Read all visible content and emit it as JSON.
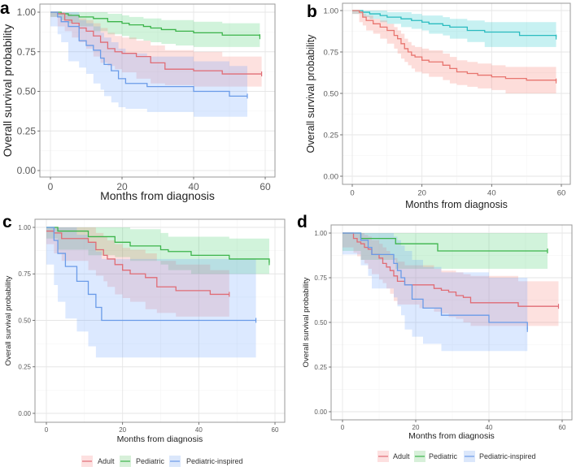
{
  "chart_data": [
    {
      "panel": "a",
      "type": "line",
      "subtype": "kaplan-meier step with confidence bands",
      "xlabel": "Months from diagnosis",
      "ylabel": "Overall survival probability",
      "xlim": [
        0,
        60
      ],
      "ylim": [
        0,
        1
      ],
      "xticks": [
        "0",
        "20",
        "40",
        "60"
      ],
      "yticks": [
        "0.00",
        "0.25",
        "0.50",
        "0.75",
        "1.00"
      ],
      "grid": true,
      "legend": "none",
      "series": [
        {
          "name": "Pediatric",
          "color": "#3cb44b",
          "x": [
            0,
            3,
            5,
            8,
            12,
            16,
            20,
            22,
            26,
            28,
            31,
            35,
            40,
            48,
            58.5
          ],
          "y": [
            1,
            0.99,
            0.98,
            0.97,
            0.96,
            0.94,
            0.93,
            0.92,
            0.91,
            0.9,
            0.89,
            0.88,
            0.87,
            0.855,
            0.845
          ],
          "lower": [
            1,
            0.97,
            0.95,
            0.93,
            0.91,
            0.88,
            0.86,
            0.85,
            0.83,
            0.82,
            0.81,
            0.8,
            0.79,
            0.78,
            0.78
          ],
          "upper": [
            1,
            1,
            1,
            1,
            1,
            0.99,
            0.98,
            0.97,
            0.96,
            0.96,
            0.95,
            0.95,
            0.94,
            0.93,
            0.93
          ]
        },
        {
          "name": "Adult",
          "color": "#e06c75",
          "x": [
            0,
            2,
            4,
            6,
            8,
            10,
            12,
            14,
            16,
            18,
            20,
            24,
            28,
            32,
            40,
            48,
            59
          ],
          "y": [
            1,
            0.99,
            0.95,
            0.93,
            0.9,
            0.88,
            0.85,
            0.81,
            0.77,
            0.75,
            0.74,
            0.72,
            0.68,
            0.64,
            0.63,
            0.61,
            0.61
          ],
          "lower": [
            1,
            0.97,
            0.91,
            0.88,
            0.84,
            0.81,
            0.77,
            0.72,
            0.68,
            0.66,
            0.64,
            0.62,
            0.58,
            0.55,
            0.54,
            0.53,
            0.53
          ],
          "upper": [
            1,
            1,
            0.99,
            0.98,
            0.96,
            0.95,
            0.93,
            0.9,
            0.87,
            0.85,
            0.84,
            0.82,
            0.79,
            0.76,
            0.75,
            0.72,
            0.71
          ]
        },
        {
          "name": "Pediatric-inspired",
          "color": "#6a9be8",
          "x": [
            0,
            2,
            3,
            5,
            8,
            10,
            12,
            14,
            15,
            17,
            19,
            21,
            27,
            40,
            50,
            55
          ],
          "y": [
            1,
            0.97,
            0.94,
            0.91,
            0.82,
            0.79,
            0.76,
            0.71,
            0.67,
            0.63,
            0.58,
            0.55,
            0.53,
            0.5,
            0.47,
            0.47
          ],
          "lower": [
            1,
            0.91,
            0.86,
            0.81,
            0.69,
            0.65,
            0.61,
            0.55,
            0.51,
            0.47,
            0.43,
            0.4,
            0.39,
            0.37,
            0.34,
            0.34
          ],
          "upper": [
            1,
            1,
            1,
            1,
            0.95,
            0.93,
            0.91,
            0.87,
            0.84,
            0.81,
            0.77,
            0.74,
            0.72,
            0.69,
            0.66,
            0.66
          ]
        }
      ]
    },
    {
      "panel": "b",
      "type": "line",
      "subtype": "kaplan-meier step with confidence bands",
      "xlabel": "Months from diagnosis",
      "ylabel": "Overall survival probability",
      "xlim": [
        0,
        60
      ],
      "ylim": [
        0,
        1
      ],
      "xticks": [
        "0",
        "20",
        "40",
        "60"
      ],
      "yticks": [
        "0.00",
        "0.25",
        "0.50",
        "0.75",
        "1.00"
      ],
      "grid": true,
      "legend": "none",
      "series": [
        {
          "name": "Pediatric",
          "color": "#2bbcc0",
          "x": [
            0,
            3,
            5,
            8,
            10,
            14,
            17,
            20,
            22,
            26,
            28,
            33,
            38,
            48,
            58.5
          ],
          "y": [
            1,
            0.99,
            0.98,
            0.97,
            0.96,
            0.95,
            0.94,
            0.93,
            0.92,
            0.91,
            0.9,
            0.88,
            0.87,
            0.85,
            0.84
          ],
          "lower": [
            1,
            0.98,
            0.96,
            0.95,
            0.93,
            0.92,
            0.9,
            0.89,
            0.88,
            0.86,
            0.85,
            0.83,
            0.81,
            0.78,
            0.78
          ],
          "upper": [
            1,
            1,
            1,
            1,
            0.99,
            0.99,
            0.98,
            0.97,
            0.97,
            0.96,
            0.95,
            0.94,
            0.93,
            0.93,
            0.93
          ]
        },
        {
          "name": "Adult",
          "color": "#e8756f",
          "x": [
            0,
            2,
            3,
            4,
            6,
            8,
            10,
            12,
            13,
            14,
            15,
            16,
            17,
            18,
            20,
            22,
            26,
            28,
            30,
            33,
            36,
            40,
            44,
            50,
            58.5
          ],
          "y": [
            1,
            0.99,
            0.96,
            0.94,
            0.92,
            0.9,
            0.88,
            0.85,
            0.83,
            0.8,
            0.77,
            0.75,
            0.73,
            0.72,
            0.7,
            0.69,
            0.67,
            0.65,
            0.63,
            0.62,
            0.61,
            0.6,
            0.59,
            0.58,
            0.575
          ],
          "lower": [
            1,
            0.98,
            0.93,
            0.91,
            0.88,
            0.86,
            0.83,
            0.8,
            0.77,
            0.74,
            0.71,
            0.69,
            0.67,
            0.65,
            0.63,
            0.62,
            0.6,
            0.58,
            0.56,
            0.55,
            0.54,
            0.53,
            0.52,
            0.5,
            0.5
          ],
          "upper": [
            1,
            1,
            0.98,
            0.97,
            0.95,
            0.94,
            0.92,
            0.9,
            0.88,
            0.86,
            0.83,
            0.81,
            0.79,
            0.78,
            0.77,
            0.76,
            0.74,
            0.72,
            0.7,
            0.69,
            0.68,
            0.67,
            0.66,
            0.66,
            0.66
          ]
        }
      ]
    },
    {
      "panel": "c",
      "type": "line",
      "subtype": "kaplan-meier step with confidence bands",
      "xlabel": "Months from diagnosis",
      "ylabel": "Overall survival probability",
      "xlim": [
        0,
        60
      ],
      "ylim": [
        0,
        1
      ],
      "xticks": [
        "0",
        "20",
        "40",
        "60"
      ],
      "yticks": [
        "0.00",
        "0.25",
        "0.50",
        "0.75",
        "1.00"
      ],
      "grid": true,
      "legend": "bottom",
      "series": [
        {
          "name": "Pediatric",
          "color": "#3cb44b",
          "x": [
            0,
            3,
            11,
            18,
            22,
            30,
            32,
            38,
            48,
            58.5
          ],
          "y": [
            1,
            0.98,
            0.95,
            0.92,
            0.9,
            0.88,
            0.87,
            0.85,
            0.83,
            0.81
          ],
          "lower": [
            1,
            0.94,
            0.88,
            0.85,
            0.84,
            0.82,
            0.8,
            0.77,
            0.75,
            0.75
          ],
          "upper": [
            1,
            1,
            1,
            1,
            0.99,
            0.97,
            0.95,
            0.95,
            0.94,
            0.93
          ]
        },
        {
          "name": "Adult",
          "color": "#e06c75",
          "x": [
            0,
            2,
            4,
            11,
            13,
            15,
            16,
            18,
            20,
            22,
            26,
            29,
            34,
            43,
            48
          ],
          "y": [
            0.98,
            0.97,
            0.94,
            0.92,
            0.88,
            0.85,
            0.83,
            0.8,
            0.77,
            0.75,
            0.73,
            0.68,
            0.66,
            0.64,
            0.64
          ],
          "lower": [
            0.95,
            0.91,
            0.86,
            0.82,
            0.77,
            0.74,
            0.71,
            0.68,
            0.64,
            0.62,
            0.6,
            0.56,
            0.54,
            0.52,
            0.52
          ],
          "upper": [
            1,
            1,
            1,
            1,
            0.97,
            0.95,
            0.93,
            0.91,
            0.89,
            0.88,
            0.86,
            0.82,
            0.8,
            0.77,
            0.77
          ]
        },
        {
          "name": "Pediatric-inspired",
          "color": "#6a9be8",
          "x": [
            0,
            2,
            3,
            5,
            8,
            11,
            13,
            14.5,
            55
          ],
          "y": [
            1,
            0.93,
            0.86,
            0.79,
            0.71,
            0.64,
            0.57,
            0.5,
            0.5
          ],
          "lower": [
            1,
            0.8,
            0.69,
            0.6,
            0.51,
            0.44,
            0.36,
            0.3,
            0.3
          ],
          "upper": [
            1,
            1,
            1,
            1,
            0.96,
            0.92,
            0.87,
            0.83,
            0.83
          ]
        }
      ],
      "legend_entries": [
        "Adult",
        "Pediatric",
        "Pediatric-inspired"
      ]
    },
    {
      "panel": "d",
      "type": "line",
      "subtype": "kaplan-meier step with confidence bands",
      "xlabel": "Months from diagnosis",
      "ylabel": "Overall survival probability",
      "xlim": [
        0,
        60
      ],
      "ylim": [
        0,
        1
      ],
      "xticks": [
        "0",
        "20",
        "40",
        "60"
      ],
      "yticks": [
        "0.00",
        "0.25",
        "0.50",
        "0.75",
        "1.00"
      ],
      "grid": true,
      "legend": "bottom",
      "series": [
        {
          "name": "Pediatric",
          "color": "#3cb44b",
          "x": [
            0,
            5,
            14.5,
            26,
            56
          ],
          "y": [
            1,
            0.97,
            0.94,
            0.9,
            0.9
          ],
          "lower": [
            1,
            0.9,
            0.85,
            0.8,
            0.8
          ],
          "upper": [
            1,
            1,
            1,
            1,
            1
          ]
        },
        {
          "name": "Adult",
          "color": "#e06c75",
          "x": [
            0,
            3,
            4,
            5,
            6,
            7,
            8,
            10,
            11,
            12,
            13,
            14,
            15,
            17,
            21,
            25,
            27,
            29,
            31,
            33,
            35,
            48,
            59
          ],
          "y": [
            1,
            0.97,
            0.95,
            0.94,
            0.92,
            0.91,
            0.88,
            0.86,
            0.83,
            0.81,
            0.79,
            0.76,
            0.73,
            0.71,
            0.71,
            0.69,
            0.68,
            0.67,
            0.65,
            0.64,
            0.61,
            0.59,
            0.59
          ],
          "lower": [
            1,
            0.92,
            0.89,
            0.87,
            0.85,
            0.83,
            0.8,
            0.77,
            0.74,
            0.72,
            0.69,
            0.66,
            0.62,
            0.6,
            0.6,
            0.58,
            0.56,
            0.55,
            0.53,
            0.52,
            0.5,
            0.48,
            0.48
          ],
          "upper": [
            1,
            1,
            1,
            1,
            0.99,
            0.98,
            0.96,
            0.94,
            0.92,
            0.9,
            0.88,
            0.86,
            0.84,
            0.82,
            0.82,
            0.8,
            0.79,
            0.79,
            0.78,
            0.77,
            0.76,
            0.73,
            0.73
          ]
        },
        {
          "name": "Pediatric-inspired",
          "color": "#6a9be8",
          "x": [
            0,
            5,
            7,
            8,
            14,
            15,
            16,
            17,
            19,
            22,
            27,
            40,
            50,
            50.5
          ],
          "y": [
            1,
            0.96,
            0.92,
            0.88,
            0.83,
            0.79,
            0.75,
            0.71,
            0.63,
            0.58,
            0.54,
            0.5,
            0.5,
            0.46
          ],
          "lower": [
            1,
            0.88,
            0.82,
            0.76,
            0.69,
            0.64,
            0.59,
            0.54,
            0.46,
            0.42,
            0.38,
            0.34,
            0.34,
            0.34
          ],
          "upper": [
            1,
            1,
            1,
            1,
            0.98,
            0.96,
            0.93,
            0.9,
            0.85,
            0.81,
            0.78,
            0.75,
            0.75,
            0.75
          ]
        }
      ],
      "legend_entries": [
        "Adult",
        "Pediatric",
        "Pediatric-inspired"
      ]
    }
  ],
  "panels": {
    "a": {
      "letter": "a"
    },
    "b": {
      "letter": "b"
    },
    "c": {
      "letter": "c"
    },
    "d": {
      "letter": "d"
    }
  },
  "common": {
    "xlabel": "Months from diagnosis",
    "ylabel": "Overall survival probability",
    "legend": {
      "adult": "Adult",
      "pediatric": "Pediatric",
      "pediatric_inspired": "Pediatric-inspired"
    },
    "colors": {
      "adult": "#e06c75",
      "pediatric": "#3cb44b",
      "pediatric_inspired": "#6a9be8",
      "pediatric_b": "#2bbcc0",
      "adult_b": "#e8756f"
    }
  }
}
